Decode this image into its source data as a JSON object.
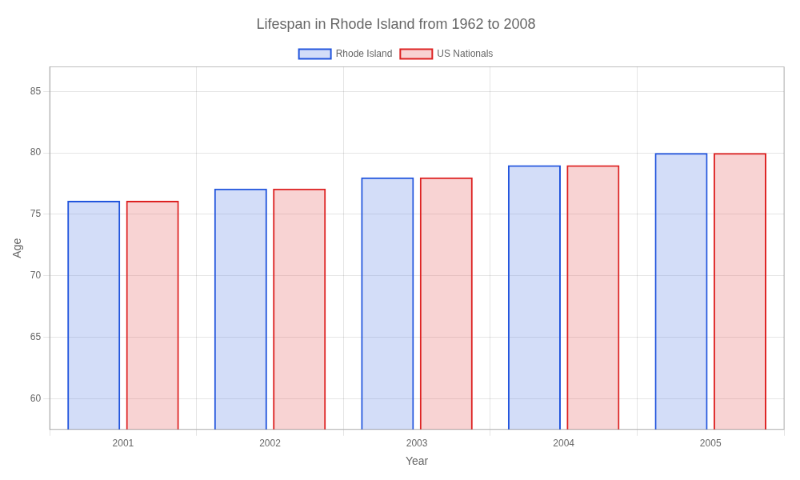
{
  "chart_data": {
    "type": "bar",
    "title": "Lifespan in Rhode Island from 1962 to 2008",
    "xlabel": "Year",
    "ylabel": "Age",
    "categories": [
      "2001",
      "2002",
      "2003",
      "2004",
      "2005"
    ],
    "series": [
      {
        "name": "Rhode Island",
        "color": "#2255dd",
        "values": [
          76.1,
          77.1,
          78.0,
          79.0,
          80.0
        ]
      },
      {
        "name": "US Nationals",
        "color": "#dd2222",
        "values": [
          76.1,
          77.1,
          78.0,
          79.0,
          80.0
        ]
      }
    ],
    "ylim": [
      57.5,
      87
    ],
    "yticks": [
      60,
      65,
      70,
      75,
      80,
      85
    ],
    "grid": true,
    "legend": "top"
  }
}
